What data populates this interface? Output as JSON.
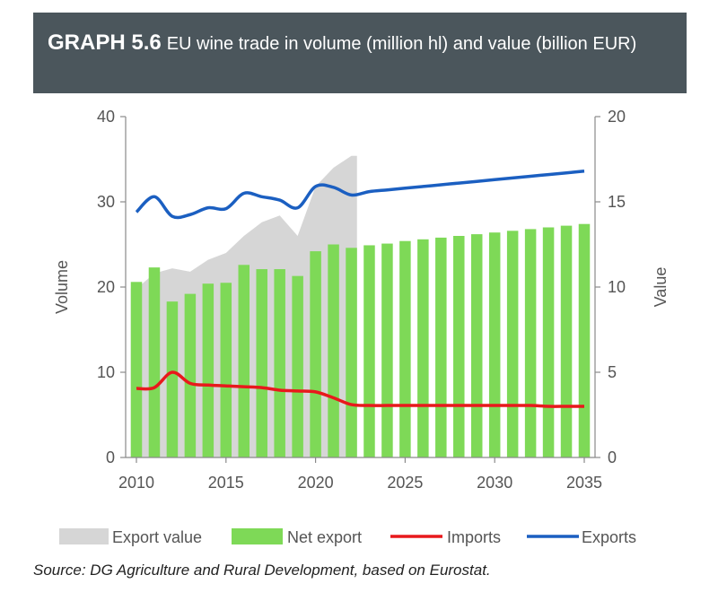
{
  "header": {
    "label": "GRAPH 5.6",
    "title": "EU wine trade in volume (million hl) and value (billion EUR)"
  },
  "source": "Source: DG Agriculture and Rural Development, based on Eurostat.",
  "chart_data": {
    "type": "bar",
    "title": "",
    "ylabel": "Volume",
    "y2label": "Value",
    "ylim": [
      0,
      40
    ],
    "y2lim": [
      0,
      20
    ],
    "yticks": [
      0,
      10,
      20,
      30,
      40
    ],
    "y2ticks": [
      0,
      5,
      10,
      15,
      20
    ],
    "xlim": [
      2010,
      2035
    ],
    "xticks": [
      2010,
      2015,
      2020,
      2025,
      2030,
      2035
    ],
    "grid": false,
    "legend_position": "bottom",
    "colors": {
      "export_value": "#d6d6d6",
      "net_export": "#7ed957",
      "imports": "#e8191c",
      "exports": "#1b5fc1"
    },
    "series": [
      {
        "name": "Export value",
        "type": "area",
        "axis": "right",
        "x": [
          2010,
          2011,
          2012,
          2013,
          2014,
          2015,
          2016,
          2017,
          2018,
          2019,
          2020,
          2021,
          2022
        ],
        "values": [
          9.9,
          10.8,
          11.1,
          10.9,
          11.6,
          12.0,
          13.0,
          13.8,
          14.2,
          13.0,
          15.9,
          17.0,
          17.7
        ]
      },
      {
        "name": "Net export",
        "type": "bar",
        "axis": "left",
        "x": [
          2010,
          2011,
          2012,
          2013,
          2014,
          2015,
          2016,
          2017,
          2018,
          2019,
          2020,
          2021,
          2022,
          2023,
          2024,
          2025,
          2026,
          2027,
          2028,
          2029,
          2030,
          2031,
          2032,
          2033,
          2034,
          2035
        ],
        "values": [
          20.6,
          22.3,
          18.3,
          19.2,
          20.4,
          20.5,
          22.6,
          22.1,
          22.1,
          21.3,
          24.2,
          25.0,
          24.6,
          24.9,
          25.1,
          25.4,
          25.6,
          25.8,
          26.0,
          26.2,
          26.4,
          26.6,
          26.8,
          27.0,
          27.2,
          27.4
        ]
      },
      {
        "name": "Imports",
        "type": "line",
        "axis": "left",
        "x": [
          2010,
          2011,
          2012,
          2013,
          2014,
          2015,
          2016,
          2017,
          2018,
          2019,
          2020,
          2021,
          2022,
          2023,
          2024,
          2025,
          2026,
          2027,
          2028,
          2029,
          2030,
          2031,
          2032,
          2033,
          2034,
          2035
        ],
        "values": [
          8.1,
          8.2,
          10.0,
          8.7,
          8.5,
          8.4,
          8.3,
          8.2,
          7.9,
          7.8,
          7.7,
          7.0,
          6.2,
          6.1,
          6.1,
          6.1,
          6.1,
          6.1,
          6.1,
          6.1,
          6.1,
          6.1,
          6.1,
          6.0,
          6.0,
          6.0
        ]
      },
      {
        "name": "Exports",
        "type": "line",
        "axis": "left",
        "x": [
          2010,
          2011,
          2012,
          2013,
          2014,
          2015,
          2016,
          2017,
          2018,
          2019,
          2020,
          2021,
          2022,
          2023,
          2024,
          2025,
          2026,
          2027,
          2028,
          2029,
          2030,
          2031,
          2032,
          2033,
          2034,
          2035
        ],
        "values": [
          28.8,
          30.6,
          28.3,
          28.5,
          29.3,
          29.2,
          31.0,
          30.6,
          30.2,
          29.3,
          31.8,
          31.7,
          30.8,
          31.2,
          31.4,
          31.6,
          31.8,
          32.0,
          32.2,
          32.4,
          32.6,
          32.8,
          33.0,
          33.2,
          33.4,
          33.6
        ]
      }
    ]
  }
}
